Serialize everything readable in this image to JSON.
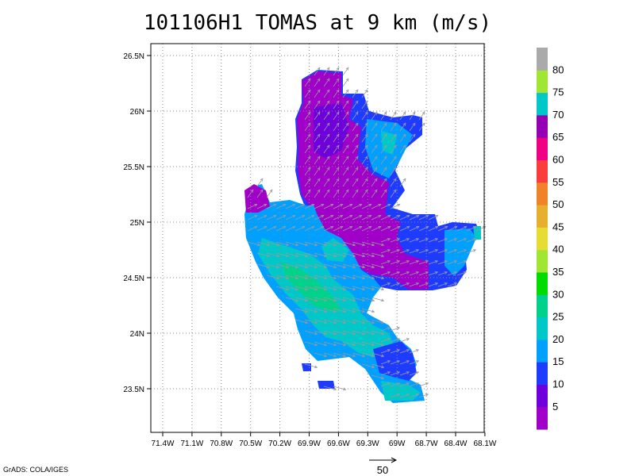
{
  "title": "101106H1 TOMAS at 9 km (m/s)",
  "credit": "GrADS: COLA/IGES",
  "ref_vector_label": "50",
  "map": {
    "lon_labels": [
      "71.4W",
      "71.1W",
      "70.8W",
      "70.5W",
      "70.2W",
      "69.9W",
      "69.6W",
      "69.3W",
      "69W",
      "68.7W",
      "68.4W",
      "68.1W"
    ],
    "lat_labels": [
      "26.5N",
      "26N",
      "25.5N",
      "25N",
      "24.5N",
      "24N",
      "23.5N"
    ],
    "lon_range": [
      -71.5,
      -68.05
    ],
    "lat_range": [
      23.1,
      26.6
    ]
  },
  "colorbar": {
    "labels": [
      "5",
      "10",
      "15",
      "20",
      "25",
      "30",
      "35",
      "40",
      "45",
      "50",
      "55",
      "60",
      "65",
      "70",
      "75",
      "80"
    ],
    "colors": [
      "#a000c8",
      "#6e00dc",
      "#1e3cff",
      "#00a0ff",
      "#00c8c8",
      "#00d28c",
      "#00dc00",
      "#a0e632",
      "#e6dc32",
      "#e6af2d",
      "#f08228",
      "#fa3c3c",
      "#f00082",
      "#9600b4",
      "#00c8c8",
      "#a0e632",
      "#aaaaaa"
    ]
  }
}
